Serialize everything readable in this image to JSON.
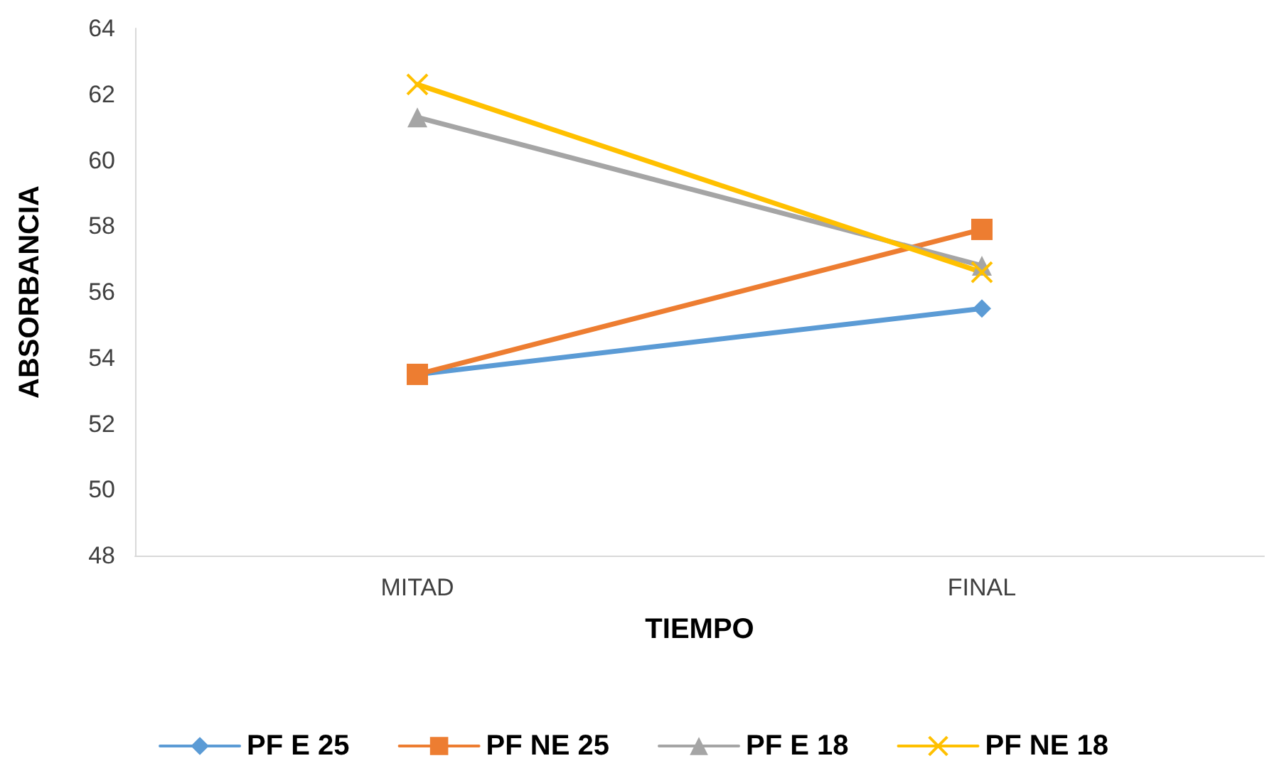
{
  "chart_data": {
    "type": "line",
    "xlabel": "TIEMPO",
    "ylabel": "ABSORBANCIA",
    "categories": [
      "MITAD",
      "FINAL"
    ],
    "series": [
      {
        "name": "PF E 25",
        "color": "#5b9bd5",
        "marker": "diamond",
        "values": [
          53.5,
          55.5
        ]
      },
      {
        "name": "PF NE 25",
        "color": "#ed7d31",
        "marker": "square",
        "values": [
          53.5,
          57.9
        ]
      },
      {
        "name": "PF E 18",
        "color": "#a5a5a5",
        "marker": "triangle",
        "values": [
          61.3,
          56.8
        ]
      },
      {
        "name": "PF NE 18",
        "color": "#ffc000",
        "marker": "cross",
        "values": [
          62.3,
          56.6
        ]
      }
    ],
    "ylim": [
      48,
      64
    ],
    "yticks": [
      48,
      50,
      52,
      54,
      56,
      58,
      60,
      62,
      64
    ],
    "grid": false,
    "legend": "bottom",
    "line_style": "solid"
  }
}
